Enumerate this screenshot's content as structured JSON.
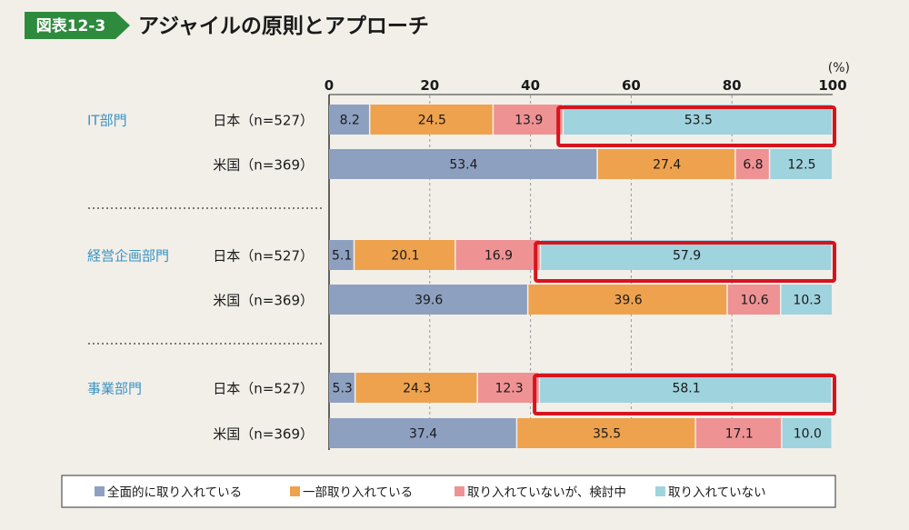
{
  "header": {
    "badge": "図表12-3",
    "title": "アジャイルの原則とアプローチ"
  },
  "colors": {
    "badge": "#2e8b3e",
    "full": "#8ea0c0",
    "partial": "#eea24e",
    "considering": "#ef9293",
    "none": "#9fd3de",
    "highlight": "#d7141e",
    "department_label": "#3a93c4"
  },
  "chart_data": {
    "type": "bar",
    "orientation": "horizontal",
    "stacked": true,
    "unit": "(%)",
    "xlim": [
      0,
      100
    ],
    "xticks": [
      "0",
      "20",
      "40",
      "60",
      "80",
      "100"
    ],
    "legend_position": "bottom",
    "series": [
      {
        "key": "full",
        "name": "全面的に取り入れている"
      },
      {
        "key": "partial",
        "name": "一部取り入れている"
      },
      {
        "key": "considering",
        "name": "取り入れていないが、検討中"
      },
      {
        "key": "none",
        "name": "取り入れていない"
      }
    ],
    "groups": [
      {
        "department": "IT部門",
        "rows": [
          {
            "label": "日本（n=527）",
            "values": [
              8.2,
              24.5,
              13.9,
              53.5
            ],
            "highlight": true
          },
          {
            "label": "米国（n=369）",
            "values": [
              53.4,
              27.4,
              6.8,
              12.5
            ],
            "highlight": false
          }
        ]
      },
      {
        "department": "経営企画部門",
        "rows": [
          {
            "label": "日本（n=527）",
            "values": [
              5.1,
              20.1,
              16.9,
              57.9
            ],
            "highlight": true
          },
          {
            "label": "米国（n=369）",
            "values": [
              39.6,
              39.6,
              10.6,
              10.3
            ],
            "highlight": false
          }
        ]
      },
      {
        "department": "事業部門",
        "rows": [
          {
            "label": "日本（n=527）",
            "values": [
              5.3,
              24.3,
              12.3,
              58.1
            ],
            "highlight": true
          },
          {
            "label": "米国（n=369）",
            "values": [
              37.4,
              35.5,
              17.1,
              10.0
            ],
            "highlight": false
          }
        ]
      }
    ]
  }
}
